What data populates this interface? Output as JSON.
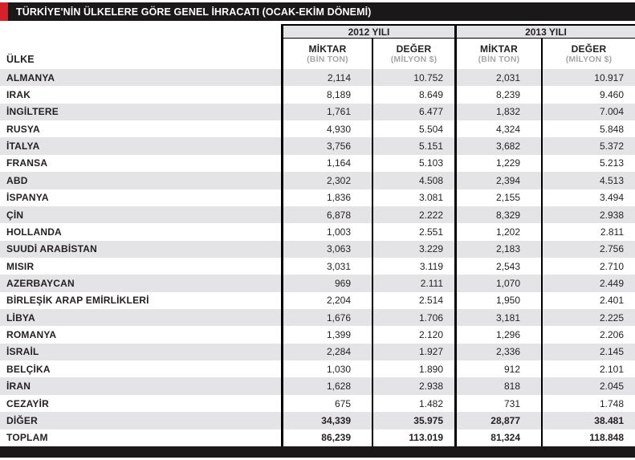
{
  "title": "TÜRKİYE'NİN ÜLKELERE GÖRE GENEL İHRACATI (OCAK-EKİM DÖNEMİ)",
  "chart_data": {
    "type": "table",
    "title": "TÜRKİYE'NİN ÜLKELERE GÖRE GENEL İHRACATI (OCAK-EKİM DÖNEMİ)",
    "country_column_header": "ÜLKE",
    "year_groups": [
      "2012 YILI",
      "2013 YILI"
    ],
    "measure_headers": [
      {
        "label": "MİKTAR",
        "unit": "(BİN TON)"
      },
      {
        "label": "DEĞER",
        "unit": "(MİLYON $)"
      }
    ],
    "rows": [
      {
        "country": "ALMANYA",
        "m2012": "2,114",
        "d2012": "10.752",
        "m2013": "2,031",
        "d2013": "10.917",
        "emphasis": false
      },
      {
        "country": "IRAK",
        "m2012": "8,189",
        "d2012": "8.649",
        "m2013": "8,239",
        "d2013": "9.460",
        "emphasis": false
      },
      {
        "country": "İNGİLTERE",
        "m2012": "1,761",
        "d2012": "6.477",
        "m2013": "1,832",
        "d2013": "7.004",
        "emphasis": false
      },
      {
        "country": "RUSYA",
        "m2012": "4,930",
        "d2012": "5.504",
        "m2013": "4,324",
        "d2013": "5.848",
        "emphasis": false
      },
      {
        "country": "İTALYA",
        "m2012": "3,756",
        "d2012": "5.151",
        "m2013": "3,682",
        "d2013": "5.372",
        "emphasis": false
      },
      {
        "country": "FRANSA",
        "m2012": "1,164",
        "d2012": "5.103",
        "m2013": "1,229",
        "d2013": "5.213",
        "emphasis": false
      },
      {
        "country": "ABD",
        "m2012": "2,302",
        "d2012": "4.508",
        "m2013": "2,394",
        "d2013": "4.513",
        "emphasis": false
      },
      {
        "country": "İSPANYA",
        "m2012": "1,836",
        "d2012": "3.081",
        "m2013": "2,155",
        "d2013": "3.494",
        "emphasis": false
      },
      {
        "country": "ÇİN",
        "m2012": "6,878",
        "d2012": "2.222",
        "m2013": "8,329",
        "d2013": "2.938",
        "emphasis": false
      },
      {
        "country": "HOLLANDA",
        "m2012": "1,003",
        "d2012": "2.551",
        "m2013": "1,202",
        "d2013": "2.811",
        "emphasis": false
      },
      {
        "country": "SUUDİ ARABİSTAN",
        "m2012": "3,063",
        "d2012": "3.229",
        "m2013": "2,183",
        "d2013": "2.756",
        "emphasis": false
      },
      {
        "country": "MISIR",
        "m2012": "3,031",
        "d2012": "3.119",
        "m2013": "2,543",
        "d2013": "2.710",
        "emphasis": false
      },
      {
        "country": "AZERBAYCAN",
        "m2012": "969",
        "d2012": "2.111",
        "m2013": "1,070",
        "d2013": "2.449",
        "emphasis": false
      },
      {
        "country": "BİRLEŞİK ARAP EMİRLİKLERİ",
        "m2012": "2,204",
        "d2012": "2.514",
        "m2013": "1,950",
        "d2013": "2.401",
        "emphasis": false
      },
      {
        "country": "LİBYA",
        "m2012": "1,676",
        "d2012": "1.706",
        "m2013": "3,181",
        "d2013": "2.225",
        "emphasis": false
      },
      {
        "country": "ROMANYA",
        "m2012": "1,399",
        "d2012": "2.120",
        "m2013": "1,296",
        "d2013": "2.206",
        "emphasis": false
      },
      {
        "country": "İSRAİL",
        "m2012": "2,284",
        "d2012": "1.927",
        "m2013": "2,336",
        "d2013": "2.145",
        "emphasis": false
      },
      {
        "country": "BELÇİKA",
        "m2012": "1,030",
        "d2012": "1.890",
        "m2013": "912",
        "d2013": "2.101",
        "emphasis": false
      },
      {
        "country": "İRAN",
        "m2012": "1,628",
        "d2012": "2.938",
        "m2013": "818",
        "d2013": "2.045",
        "emphasis": false
      },
      {
        "country": "CEZAYİR",
        "m2012": "675",
        "d2012": "1.482",
        "m2013": "731",
        "d2013": "1.748",
        "emphasis": false
      },
      {
        "country": "DİĞER",
        "m2012": "34,339",
        "d2012": "35.975",
        "m2013": "28,877",
        "d2013": "38.481",
        "emphasis": true
      },
      {
        "country": "TOPLAM",
        "m2012": "86,239",
        "d2012": "113.019",
        "m2013": "81,324",
        "d2013": "118.848",
        "emphasis": true
      }
    ]
  },
  "colors": {
    "accent_red": "#d6212b",
    "header_black": "#1b181a",
    "stripe_gray": "#e4e4e6",
    "unit_gray": "#a7a5a8",
    "text_dark": "#231f20"
  }
}
